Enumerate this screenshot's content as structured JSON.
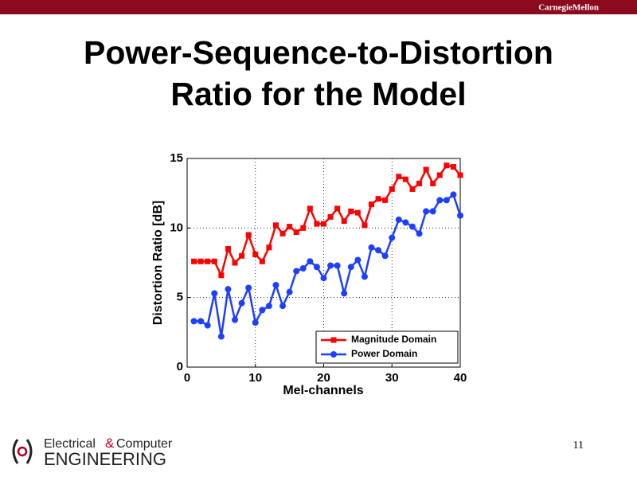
{
  "slide": {
    "brand": "CarnegieMellon",
    "title": [
      "Power-Sequence-to-Distortion",
      "Ratio for the Model"
    ],
    "logo": {
      "line1a": "Electrical",
      "amp": "&",
      "line1b": "Computer",
      "line2": "ENGINEERING"
    },
    "page_number": 11
  },
  "chart_data": {
    "type": "line",
    "x_label": "Mel-channels",
    "y_label": "Distortion Ratio [dB]",
    "x": [
      1,
      2,
      3,
      4,
      5,
      6,
      7,
      8,
      9,
      10,
      11,
      12,
      13,
      14,
      15,
      16,
      17,
      18,
      19,
      20,
      21,
      22,
      23,
      24,
      25,
      26,
      27,
      28,
      29,
      30,
      31,
      32,
      33,
      34,
      35,
      36,
      37,
      38,
      39,
      40
    ],
    "series": [
      {
        "name": "Magnitude Domain",
        "color": "#ff0000",
        "marker": "square",
        "values": [
          7.6,
          7.6,
          7.6,
          7.6,
          6.6,
          8.5,
          7.5,
          8.0,
          9.5,
          8.1,
          7.6,
          8.6,
          10.2,
          9.6,
          10.1,
          9.7,
          10.0,
          11.4,
          10.3,
          10.3,
          10.8,
          11.4,
          10.5,
          11.2,
          11.1,
          10.2,
          11.7,
          12.1,
          12.0,
          12.8,
          13.7,
          13.5,
          12.8,
          13.2,
          14.2,
          13.2,
          13.8,
          14.5,
          14.4,
          13.8
        ]
      },
      {
        "name": "Power Domain",
        "color": "#1f3fff",
        "marker": "circle",
        "values": [
          3.3,
          3.3,
          3.0,
          5.3,
          2.2,
          5.6,
          3.4,
          4.6,
          5.7,
          3.2,
          4.1,
          4.4,
          5.9,
          4.4,
          5.4,
          6.9,
          7.1,
          7.6,
          7.2,
          6.4,
          7.3,
          7.3,
          5.3,
          7.2,
          7.7,
          6.5,
          8.6,
          8.4,
          8.0,
          9.3,
          10.6,
          10.4,
          10.1,
          9.6,
          11.2,
          11.2,
          12.0,
          12.0,
          12.4,
          10.9
        ]
      }
    ],
    "xlim": [
      0,
      40
    ],
    "xticks": [
      0,
      10,
      20,
      30,
      40
    ],
    "ylim": [
      0,
      15
    ],
    "yticks": [
      0,
      5,
      10,
      15
    ],
    "grid": true,
    "legend": "lower right"
  }
}
